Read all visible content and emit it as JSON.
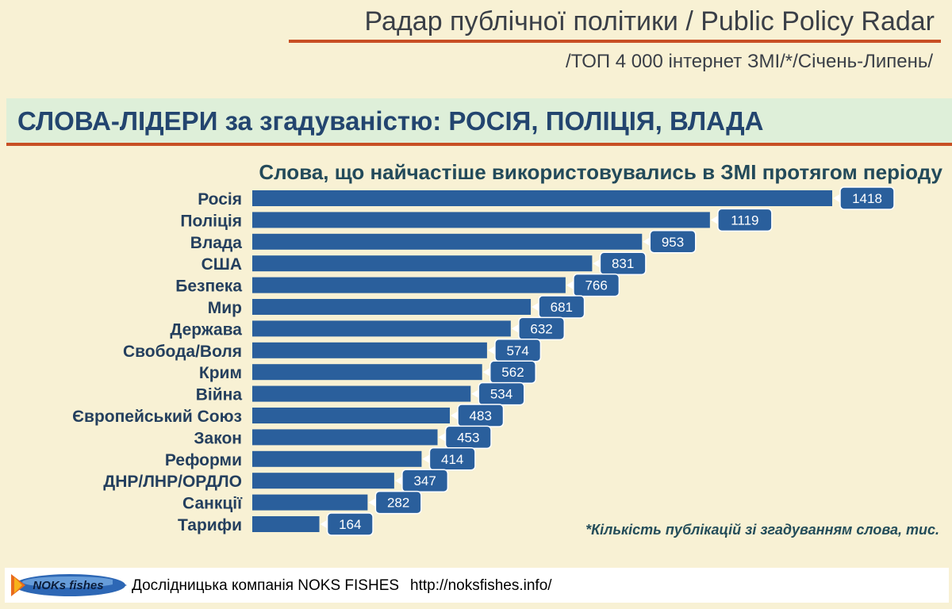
{
  "header": {
    "title": "Радар публічної політики / Public Policy Radar",
    "subtitle": "/ТОП 4 000 інтернет ЗМІ/*/Січень-Липень/"
  },
  "banner": {
    "text": "СЛОВА-ЛІДЕРИ за згадуваністю: РОСІЯ, ПОЛІЦІЯ, ВЛАДА"
  },
  "chart_data": {
    "type": "bar",
    "orientation": "horizontal",
    "title": "Слова, що найчастіше використовувались в ЗМІ протягом періоду",
    "categories": [
      "Росія",
      "Поліція",
      "Влада",
      "США",
      "Безпека",
      "Мир",
      "Держава",
      "Свобода/Воля",
      "Крим",
      "Війна",
      "Європейський Союз",
      "Закон",
      "Реформи",
      "ДНР/ЛНР/ОРДЛО",
      "Санкції",
      "Тарифи"
    ],
    "values": [
      1418,
      1119,
      953,
      831,
      766,
      681,
      632,
      574,
      562,
      534,
      483,
      453,
      414,
      347,
      282,
      164
    ],
    "note": "*Кількість публікацій зі згадуванням слова, тис.",
    "bar_color": "#2a5f9c",
    "grid": false
  },
  "footer": {
    "logo_text": "NOKs fishes",
    "company": "Дослідницька компанія NOKS FISHES",
    "url": "http://noksfishes.info/"
  },
  "colors": {
    "background": "#f8f1d4",
    "accent": "#c84f24",
    "banner_bg": "#deefd9",
    "banner_text": "#23456f"
  }
}
